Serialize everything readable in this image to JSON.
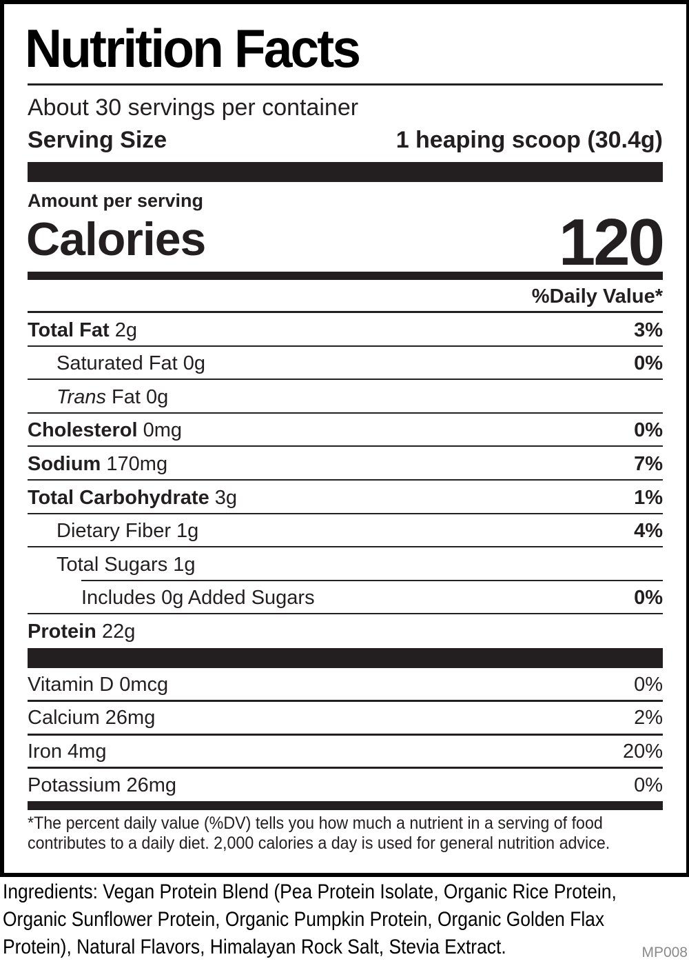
{
  "title": "Nutrition Facts",
  "servings_per_container": "About 30 servings per container",
  "serving_size": {
    "label": "Serving Size",
    "value": "1 heaping scoop (30.4g)"
  },
  "amount_per_serving": "Amount per serving",
  "calories": {
    "label": "Calories",
    "value": "120"
  },
  "daily_value_header": "%Daily Value*",
  "nutrients": [
    {
      "name": "Total Fat",
      "amount": " 2g",
      "dv": "3%",
      "bold": true,
      "indent": 0
    },
    {
      "name": "Saturated Fat",
      "amount": " 0g",
      "dv": "0%",
      "bold": false,
      "indent": 1
    },
    {
      "name": "Trans",
      "amount": " Fat 0g",
      "dv": "",
      "bold": false,
      "indent": 1,
      "italic": true
    },
    {
      "name": "Cholesterol",
      "amount": " 0mg",
      "dv": "0%",
      "bold": true,
      "indent": 0
    },
    {
      "name": "Sodium",
      "amount": " 170mg",
      "dv": "7%",
      "bold": true,
      "indent": 0
    },
    {
      "name": "Total Carbohydrate",
      "amount": " 3g",
      "dv": "1%",
      "bold": true,
      "indent": 0
    },
    {
      "name": "Dietary Fiber",
      "amount": " 1g",
      "dv": "4%",
      "bold": false,
      "indent": 1
    },
    {
      "name": "Total Sugars",
      "amount": " 1g",
      "dv": "",
      "bold": false,
      "indent": 1
    },
    {
      "name": "Includes 0g Added Sugars",
      "amount": "",
      "dv": "0%",
      "bold": false,
      "indent": 2
    },
    {
      "name": "Protein",
      "amount": " 22g",
      "dv": "",
      "bold": true,
      "indent": 0
    }
  ],
  "vitamins": [
    {
      "name": "Vitamin D 0mcg",
      "dv": "0%"
    },
    {
      "name": "Calcium 26mg",
      "dv": "2%"
    },
    {
      "name": "Iron 4mg",
      "dv": "20%"
    },
    {
      "name": "Potassium 26mg",
      "dv": "0%"
    }
  ],
  "footnote": "*The percent daily value (%DV) tells you how much a nutrient in a serving of food contributes to a daily diet. 2,000 calories a day is used for general nutrition advice.",
  "ingredients": "Ingredients: Vegan Protein Blend (Pea Protein Isolate, Organic Rice Protein, Organic Sunflower Protein, Organic Pumpkin Protein, Organic Golden Flax Protein), Natural Flavors, Himalayan Rock Salt, Stevia Extract.",
  "product_code": "MP008"
}
